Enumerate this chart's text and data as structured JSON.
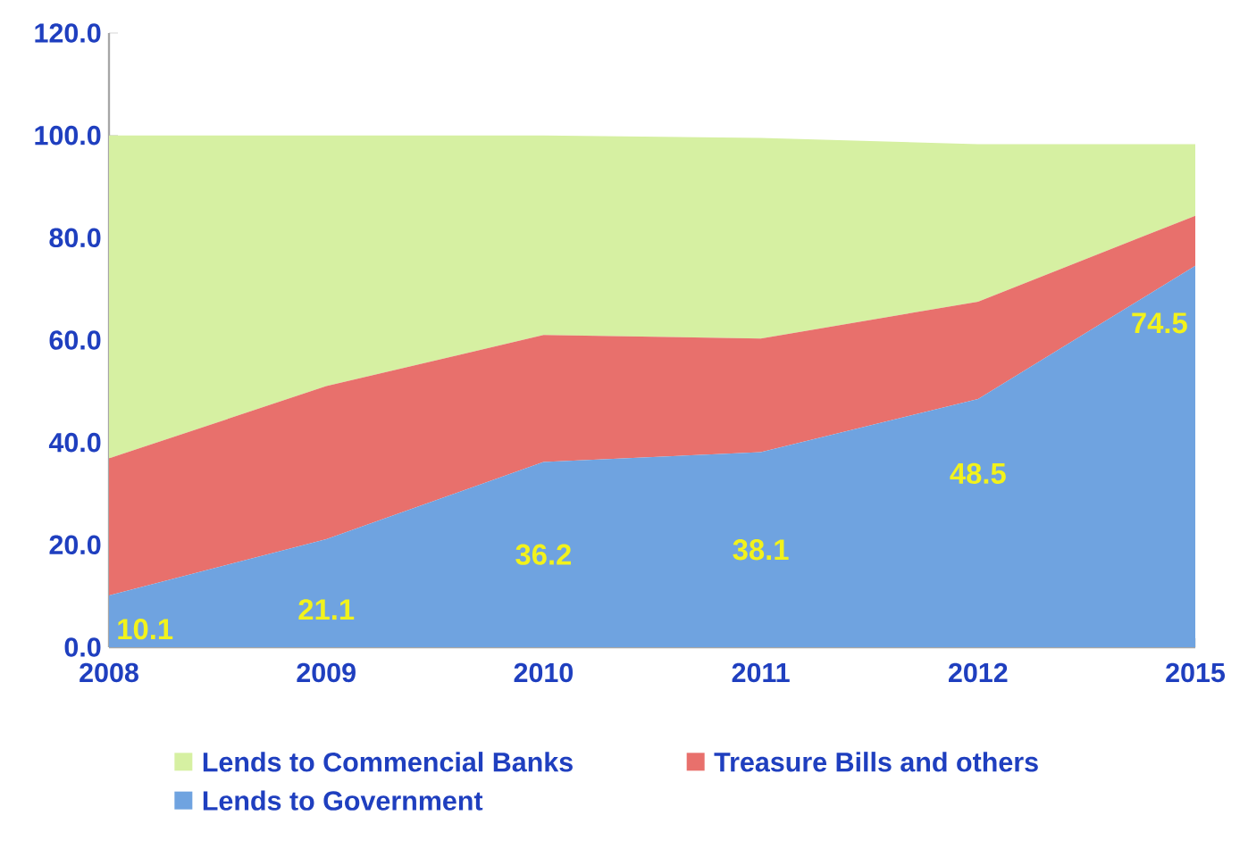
{
  "chart_data": {
    "type": "area",
    "stacked": true,
    "categories": [
      "2008",
      "2009",
      "2010",
      "2011",
      "2012",
      "2015"
    ],
    "series": [
      {
        "name": "Lends to Government",
        "color": "#6fa3e0",
        "values": [
          10.1,
          21.1,
          36.2,
          38.1,
          48.5,
          74.5
        ],
        "value_labels": [
          "10.1",
          "21.1",
          "36.2",
          "38.1",
          "48.5",
          "74.5"
        ]
      },
      {
        "name": "Treasure Bills and others",
        "color": "#e8706c",
        "values": [
          26.8,
          29.9,
          24.8,
          22.2,
          19.0,
          9.8
        ]
      },
      {
        "name": "Lends to Commencial Banks",
        "color": "#d6f0a2",
        "values": [
          63.1,
          49.0,
          39.0,
          39.2,
          30.8,
          14.0
        ]
      }
    ],
    "ylim": [
      0,
      120
    ],
    "yticks": [
      {
        "value": 0,
        "label": "0.0"
      },
      {
        "value": 20,
        "label": "20.0"
      },
      {
        "value": 40,
        "label": "40.0"
      },
      {
        "value": 60,
        "label": "60.0"
      },
      {
        "value": 80,
        "label": "80.0"
      },
      {
        "value": 100,
        "label": "100.0"
      },
      {
        "value": 120,
        "label": "120.0"
      }
    ],
    "legend": "bottom"
  }
}
